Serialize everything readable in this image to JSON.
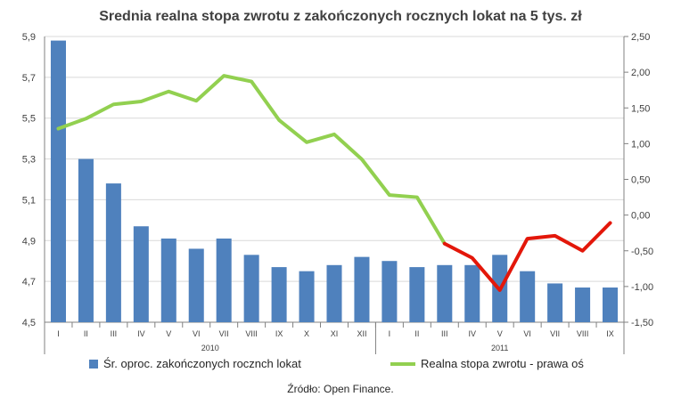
{
  "chart_data": {
    "type": "bar+line",
    "title": "Srednia realna stopa zwrotu z zakończonych rocznych lokat na 5 tys. zł",
    "categories": [
      "I",
      "II",
      "III",
      "IV",
      "V",
      "VI",
      "VII",
      "VIII",
      "IX",
      "X",
      "XI",
      "XII",
      "I",
      "II",
      "III",
      "IV",
      "V",
      "VI",
      "VII",
      "VIII",
      "IX"
    ],
    "year_groups": [
      {
        "label": "2010",
        "count": 12
      },
      {
        "label": "2011",
        "count": 9
      }
    ],
    "y_left": {
      "min": 4.5,
      "max": 5.9,
      "ticks": [
        "4,5",
        "4,7",
        "4,9",
        "5,1",
        "5,3",
        "5,5",
        "5,7",
        "5,9"
      ]
    },
    "y_right": {
      "min": -1.5,
      "max": 2.5,
      "ticks": [
        "-1,50",
        "-1,00",
        "-0,50",
        "0,00",
        "0,50",
        "1,00",
        "1,50",
        "2,00",
        "2,50"
      ]
    },
    "grid": true,
    "legend_position": "bottom",
    "series": [
      {
        "name": "Śr. oproc. zakończonych rocznch lokat",
        "kind": "bar",
        "axis": "left",
        "color": "#4f81bd",
        "values": [
          5.88,
          5.3,
          5.18,
          4.97,
          4.91,
          4.86,
          4.91,
          4.83,
          4.77,
          4.75,
          4.78,
          4.82,
          4.8,
          4.77,
          4.78,
          4.78,
          4.83,
          4.75,
          4.69,
          4.67,
          4.67
        ]
      },
      {
        "name": "Realna stopa zwrotu - prawa oś",
        "kind": "line",
        "axis": "right",
        "color": "#92d050",
        "negative_color": "#e3170a",
        "values": [
          1.21,
          1.35,
          1.55,
          1.59,
          1.73,
          1.6,
          1.95,
          1.87,
          1.33,
          1.02,
          1.13,
          0.78,
          0.28,
          0.25,
          -0.4,
          -0.6,
          -1.05,
          -0.33,
          -0.29,
          -0.5,
          -0.11
        ]
      }
    ]
  },
  "source_note": "Źródło: Open Finance."
}
